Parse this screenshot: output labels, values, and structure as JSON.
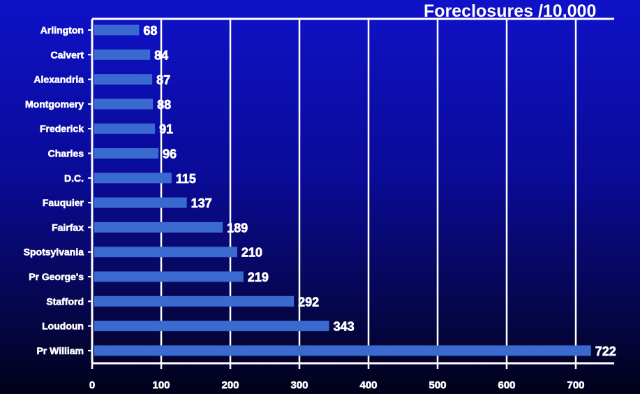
{
  "chart_data": {
    "type": "bar",
    "orientation": "horizontal",
    "title": "Foreclosures /10,000",
    "xlabel": "",
    "ylabel": "",
    "categories": [
      "Arlington",
      "Calvert",
      "Alexandria",
      "Montgomery",
      "Frederick",
      "Charles",
      "D.C.",
      "Fauquier",
      "Fairfax",
      "Spotsylvania",
      "Pr George's",
      "Stafford",
      "Loudoun",
      "Pr William"
    ],
    "values": [
      68,
      84,
      87,
      88,
      91,
      96,
      115,
      137,
      189,
      210,
      219,
      292,
      343,
      722
    ],
    "value_labels": [
      "68",
      "84",
      "87",
      "88",
      "91",
      "96",
      "115",
      "137",
      "189",
      "210",
      "219",
      "292",
      "343",
      "722"
    ],
    "xlim": [
      0,
      750
    ],
    "xticks": [
      0,
      100,
      200,
      300,
      400,
      500,
      600,
      700
    ],
    "xtick_labels": [
      "0",
      "100",
      "200",
      "300",
      "400",
      "500",
      "600",
      "700"
    ],
    "grid": "vertical",
    "legend": "none",
    "colors": {
      "bar": "#3a6ad0",
      "grid": "#ffffff",
      "text": "#ffffff",
      "background_top": "#0f12c8",
      "background_bottom": "#01011a"
    }
  }
}
